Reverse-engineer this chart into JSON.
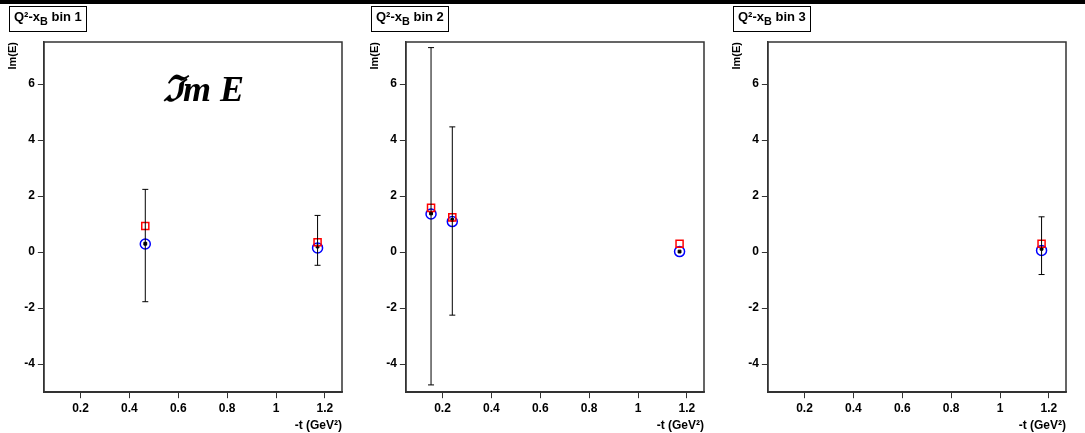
{
  "chart_data": [
    {
      "type": "scatter",
      "title": "Q²-x$_{B}$ bin 1",
      "xlabel": "-t (GeV²)",
      "ylabel": "Im(E)",
      "annotations": [
        "ℑm E"
      ],
      "xlim": [
        0.05,
        1.27
      ],
      "xticks": [
        0.2,
        0.4,
        0.6,
        0.8,
        1,
        1.2
      ],
      "ylim": [
        -5,
        7.5
      ],
      "yticks": [
        -4,
        -2,
        0,
        2,
        4,
        6
      ],
      "grid": false,
      "legend": false,
      "series": [
        {
          "color": "#ff0000",
          "marker": "square",
          "x": [
            0.465,
            1.17
          ],
          "values": [
            0.93,
            0.35
          ]
        },
        {
          "color": "#0000ff",
          "marker": "circle",
          "x": [
            0.465,
            1.17
          ],
          "values": [
            0.29,
            0.15
          ]
        },
        {
          "color": "#000000",
          "marker": "square",
          "x": [
            0.465,
            1.17
          ],
          "values": [
            0.3,
            0.2
          ],
          "errors": [
            [
              -1.77,
              2.24
            ],
            [
              -0.47,
              1.31
            ]
          ]
        }
      ]
    },
    {
      "type": "scatter",
      "title": "Q²-x$_{B}$ bin 2",
      "xlabel": "-t (GeV²)",
      "ylabel": "Im(E)",
      "xlim": [
        0.05,
        1.27
      ],
      "xticks": [
        0.2,
        0.4,
        0.6,
        0.8,
        1,
        1.2
      ],
      "ylim": [
        -5,
        7.5
      ],
      "yticks": [
        -4,
        -2,
        0,
        2,
        4,
        6
      ],
      "grid": false,
      "legend": false,
      "series": [
        {
          "color": "#ff0000",
          "marker": "square",
          "x": [
            0.153,
            0.24,
            1.17
          ],
          "values": [
            1.58,
            1.24,
            0.3
          ]
        },
        {
          "color": "#0000ff",
          "marker": "circle",
          "x": [
            0.153,
            0.24,
            1.17
          ],
          "values": [
            1.36,
            1.09,
            0.02
          ]
        },
        {
          "color": "#000000",
          "marker": "square",
          "x": [
            0.153,
            0.24,
            1.17
          ],
          "values": [
            1.38,
            1.15,
            0.02
          ],
          "errors": [
            [
              -4.74,
              7.3
            ],
            [
              -2.25,
              4.47
            ],
            null
          ]
        }
      ]
    },
    {
      "type": "scatter",
      "title": "Q²-x$_{B}$ bin 3",
      "xlabel": "-t (GeV²)",
      "ylabel": "Im(E)",
      "xlim": [
        0.05,
        1.27
      ],
      "xticks": [
        0.2,
        0.4,
        0.6,
        0.8,
        1,
        1.2
      ],
      "ylim": [
        -5,
        7.5
      ],
      "yticks": [
        -4,
        -2,
        0,
        2,
        4,
        6
      ],
      "grid": false,
      "legend": false,
      "series": [
        {
          "color": "#ff0000",
          "marker": "square",
          "x": [
            1.17
          ],
          "values": [
            0.3
          ]
        },
        {
          "color": "#0000ff",
          "marker": "circle",
          "x": [
            1.17
          ],
          "values": [
            0.06
          ]
        },
        {
          "color": "#000000",
          "marker": "square",
          "x": [
            1.17
          ],
          "values": [
            0.12
          ],
          "errors": [
            [
              -0.8,
              1.26
            ]
          ]
        }
      ]
    }
  ]
}
